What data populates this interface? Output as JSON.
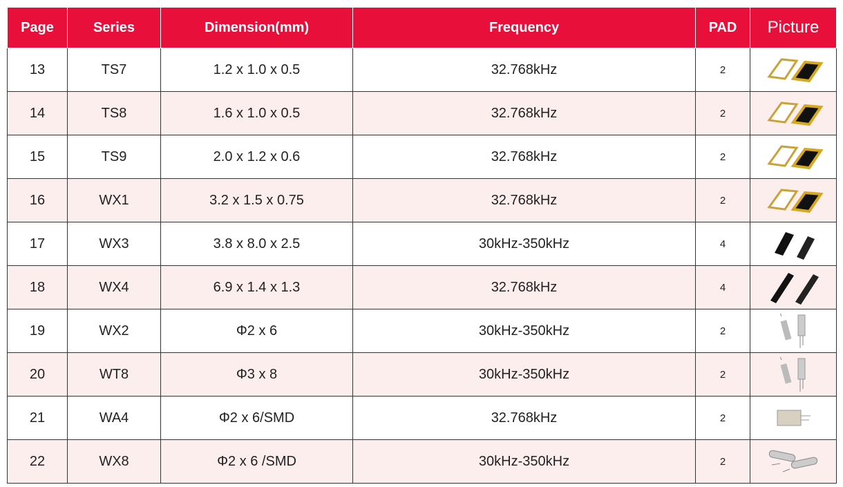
{
  "header": {
    "page": "Page",
    "series": "Series",
    "dimension": "Dimension(mm)",
    "frequency": "Frequency",
    "pad": "PAD",
    "picture": "Picture"
  },
  "table": {
    "rows": [
      [
        13,
        "TS7",
        "1.2 x 1.0 x 0.5",
        "32.768kHz",
        2
      ],
      [
        14,
        "TS8",
        "1.6 x 1.0 x 0.5",
        "32.768kHz",
        2
      ],
      [
        15,
        "TS9",
        "2.0 x 1.2 x 0.6",
        "32.768kHz",
        2
      ],
      [
        16,
        "WX1",
        "3.2 x 1.5 x 0.75",
        "32.768kHz",
        2
      ],
      [
        17,
        "WX3",
        "3.8 x 8.0 x 2.5",
        "30kHz-350kHz",
        4
      ],
      [
        18,
        "WX4",
        "6.9 x 1.4 x 1.3",
        "32.768kHz",
        4
      ],
      [
        19,
        "WX2",
        "Φ2 x 6",
        "30kHz-350kHz",
        2
      ],
      [
        20,
        "WT8",
        "Φ3 x 8",
        "30kHz-350kHz",
        2
      ],
      [
        21,
        "WA4",
        "Φ2 x 6/SMD",
        "32.768kHz",
        2
      ],
      [
        22,
        "WX8",
        "Φ2 x 6 /SMD",
        "30kHz-350kHz",
        2
      ]
    ]
  }
}
